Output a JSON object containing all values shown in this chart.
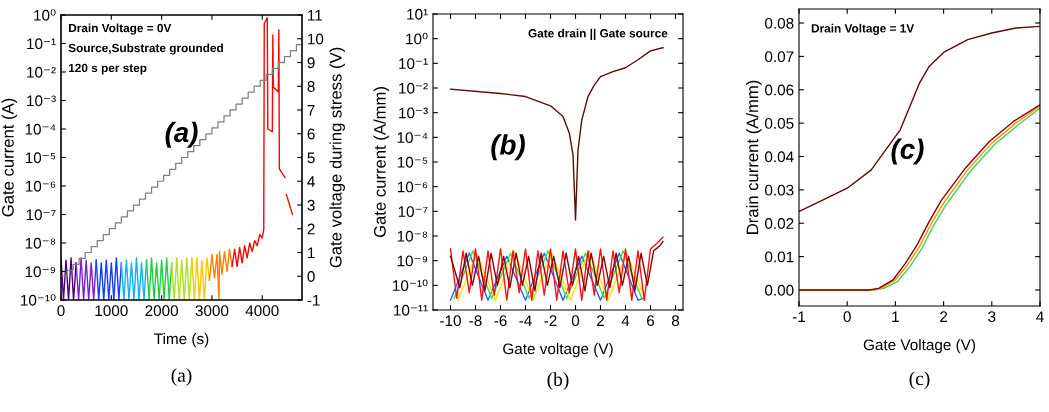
{
  "chart_data": [
    {
      "type": "line",
      "log": true,
      "xlabel": "Time (s)",
      "ylabel": "Gate current (A)",
      "y2label": "Gate voltage during stress (V)",
      "xlim": [
        0,
        4790
      ],
      "xticks": [
        0,
        1000,
        2000,
        3000,
        4000
      ],
      "ylim": [
        1e-10,
        1
      ],
      "yticks": [
        {
          "value": 1e-10,
          "label": "10⁻¹⁰"
        },
        {
          "value": 1e-09,
          "label": "10⁻⁹"
        },
        {
          "value": 1e-08,
          "label": "10⁻⁸"
        },
        {
          "value": 1e-07,
          "label": "10⁻⁷"
        },
        {
          "value": 1e-06,
          "label": "10⁻⁶"
        },
        {
          "value": 1e-05,
          "label": "10⁻⁵"
        },
        {
          "value": 0.0001,
          "label": "10⁻⁴"
        },
        {
          "value": 0.001,
          "label": "10⁻³"
        },
        {
          "value": 0.01,
          "label": "10⁻²"
        },
        {
          "value": 0.1,
          "label": "10⁻¹"
        },
        {
          "value": 1,
          "label": "10⁰"
        }
      ],
      "y2lim": [
        -1,
        11
      ],
      "y2ticks": [
        -1,
        0,
        1,
        2,
        3,
        4,
        5,
        6,
        7,
        8,
        9,
        10,
        11
      ],
      "annotations": [
        "Drain Voltage = 0V",
        "Source,Substrate grounded",
        "120 s per step",
        "(a)",
        "(a)"
      ],
      "series": [
        {
          "color": "#4b0082",
          "x": [
            0,
            50,
            100,
            150,
            200,
            250,
            300
          ],
          "values": [
            3e-09,
            1e-10,
            2.5e-09,
            1e-10,
            3e-09,
            1e-10,
            2e-09
          ]
        },
        {
          "color": "#7b20d0",
          "x": [
            300,
            350,
            400,
            450,
            500,
            550,
            600,
            650,
            700
          ],
          "values": [
            2e-09,
            1e-10,
            3e-09,
            1e-10,
            2.5e-09,
            1e-10,
            2e-09,
            1e-10,
            2.5e-09
          ]
        },
        {
          "color": "#1040ff",
          "x": [
            700,
            750,
            800,
            850,
            900,
            950,
            1000,
            1050,
            1100,
            1150,
            1200
          ],
          "values": [
            2.5e-09,
            1e-10,
            2e-09,
            1e-10,
            2.5e-09,
            1e-10,
            2e-09,
            1e-10,
            3e-09,
            1e-10,
            2e-09
          ]
        },
        {
          "color": "#10b0ff",
          "x": [
            1200,
            1250,
            1300,
            1350,
            1400,
            1450,
            1500,
            1550,
            1600,
            1650,
            1700
          ],
          "values": [
            2e-09,
            1e-10,
            2.5e-09,
            1e-10,
            2e-09,
            1e-10,
            3e-09,
            1e-10,
            2e-09,
            1e-10,
            2.5e-09
          ]
        },
        {
          "color": "#20d040",
          "x": [
            1700,
            1750,
            1800,
            1850,
            1900,
            1950,
            2000,
            2050,
            2100,
            2150,
            2200
          ],
          "values": [
            2.5e-09,
            1e-10,
            3e-09,
            1e-10,
            2e-09,
            1e-10,
            2.5e-09,
            1e-10,
            3e-09,
            1e-10,
            2e-09
          ]
        },
        {
          "color": "#b0e020",
          "x": [
            2200,
            2250,
            2300,
            2350,
            2400,
            2450,
            2500,
            2550,
            2600
          ],
          "values": [
            2e-09,
            1e-10,
            3e-09,
            1e-10,
            2.5e-09,
            1e-10,
            3e-09,
            1e-10,
            3e-09
          ]
        },
        {
          "color": "#ffc800",
          "x": [
            2600,
            2650,
            2700,
            2750,
            2800,
            2850,
            2900,
            2950
          ],
          "values": [
            3e-09,
            1e-10,
            3e-09,
            1e-10,
            2.5e-09,
            1e-10,
            3e-09,
            5e-10
          ]
        },
        {
          "color": "#ff8000",
          "x": [
            2950,
            3000,
            3050,
            3100,
            3140,
            3150,
            3200,
            3250,
            3300,
            3350,
            3400
          ],
          "values": [
            5e-10,
            4e-09,
            6e-10,
            4e-09,
            1e-10,
            5e-09,
            8e-10,
            5e-09,
            1e-09,
            6e-09,
            1.5e-09
          ]
        },
        {
          "color": "#ff0000",
          "x": [
            3400,
            3450,
            3500,
            3550,
            3600,
            3650,
            3700,
            3750,
            3800,
            3850,
            3900,
            3950,
            4000,
            4030,
            4040,
            4100,
            4110,
            4200,
            4210,
            4220,
            4320,
            4330,
            4340,
            4450,
            4460,
            4480,
            4600
          ],
          "values": [
            1.5e-09,
            6e-09,
            1.5e-09,
            7e-09,
            2e-09,
            8e-09,
            3e-09,
            1e-08,
            5e-09,
            1.2e-08,
            8e-09,
            2e-08,
            1.5e-08,
            3e-08,
            0.5,
            0.8,
            0.0001,
            8e-05,
            0.2,
            0.003,
            0.002,
            0.3,
            4e-06,
            2e-06,
            null,
            5e-07,
            1e-07
          ]
        },
        {
          "type": "step",
          "axis": "y2",
          "color": "#808080",
          "x": [
            0,
            120,
            240,
            360,
            480,
            600,
            720,
            840,
            960,
            1080,
            1200,
            1320,
            1440,
            1560,
            1680,
            1800,
            1920,
            2040,
            2160,
            2280,
            2400,
            2520,
            2640,
            2760,
            2880,
            3000,
            3120,
            3240,
            3360,
            3480,
            3600,
            3720,
            3840,
            3960,
            4080,
            4200,
            4320,
            4440,
            4560,
            4680,
            4790
          ],
          "values": [
            0,
            0.25,
            0.5,
            0.75,
            1,
            1.25,
            1.5,
            1.75,
            2,
            2.25,
            2.5,
            2.75,
            3,
            3.25,
            3.5,
            3.75,
            4,
            4.25,
            4.5,
            4.75,
            5,
            5.25,
            5.5,
            5.75,
            6,
            6.25,
            6.5,
            6.75,
            7,
            7.25,
            7.5,
            7.75,
            8,
            8.25,
            8.5,
            8.75,
            9,
            9.25,
            9.5,
            9.75,
            9.75
          ]
        }
      ]
    },
    {
      "type": "line",
      "log": true,
      "xlabel": "Gate voltage (V)",
      "ylabel": "Gate current (A/mm)",
      "xlim": [
        -11.4,
        8.6
      ],
      "xticks": [
        -10,
        -8,
        -6,
        -4,
        -2,
        0,
        2,
        4,
        6,
        8
      ],
      "ylim": [
        1e-11,
        10
      ],
      "yticks": [
        {
          "value": 1e-11,
          "label": "10⁻¹¹"
        },
        {
          "value": 1e-10,
          "label": "10⁻¹⁰"
        },
        {
          "value": 1e-09,
          "label": "10⁻⁹"
        },
        {
          "value": 1e-08,
          "label": "10⁻⁸"
        },
        {
          "value": 1e-07,
          "label": "10⁻⁷"
        },
        {
          "value": 1e-06,
          "label": "10⁻⁶"
        },
        {
          "value": 1e-05,
          "label": "10⁻⁵"
        },
        {
          "value": 0.0001,
          "label": "10⁻⁴"
        },
        {
          "value": 0.001,
          "label": "10⁻³"
        },
        {
          "value": 0.01,
          "label": "10⁻²"
        },
        {
          "value": 0.1,
          "label": "10⁻¹"
        },
        {
          "value": 1,
          "label": "10⁰"
        },
        {
          "value": 10,
          "label": "10¹"
        }
      ],
      "annotations": [
        "Gate drain || Gate source",
        "(b)",
        "(b)"
      ],
      "series": [
        {
          "color": "#2060ff",
          "x": [
            -10,
            -8.5,
            -7,
            -5.5,
            -4,
            -2.5,
            -1,
            0.5,
            2,
            3.5,
            5,
            5.5
          ],
          "values": [
            2.5e-11,
            2e-09,
            2.5e-11,
            1.5e-09,
            2.5e-11,
            2e-09,
            2.5e-11,
            1.5e-09,
            2.5e-11,
            2e-09,
            2.5e-11,
            3e-11
          ]
        },
        {
          "color": "#40e040",
          "x": [
            -9.7,
            -8.2,
            -6.7,
            -5.2,
            -3.7,
            -2.2,
            -0.7,
            0.8,
            2.3,
            3.8,
            5.3
          ],
          "values": [
            3e-11,
            2.5e-09,
            3e-11,
            2e-09,
            3e-11,
            2.5e-09,
            3e-11,
            2e-09,
            3e-11,
            2.5e-09,
            3e-11
          ]
        },
        {
          "color": "#ffe000",
          "x": [
            -9.4,
            -7.9,
            -6.4,
            -4.9,
            -3.4,
            -1.9,
            -0.4,
            1.1,
            2.6,
            4.1,
            5.6
          ],
          "values": [
            2.5e-11,
            2e-09,
            2.5e-11,
            2.5e-09,
            2.5e-11,
            2e-09,
            2.5e-11,
            2.5e-09,
            2.5e-11,
            2e-09,
            2.5e-11
          ]
        },
        {
          "color": "#ff1010",
          "x": [
            -10,
            -9.5,
            -9,
            -8.5,
            -8,
            -7.5,
            -7,
            -6.5,
            -6,
            -5.5,
            -5,
            -4.5,
            -4,
            -3.5,
            -3,
            -2.5,
            -2,
            -1.5,
            -1,
            -0.5,
            0,
            0.5,
            1,
            1.5,
            2,
            2.5,
            3,
            3.5,
            4,
            4.5,
            5,
            5.5,
            6,
            6.5,
            7
          ],
          "values": [
            3e-09,
            3e-11,
            2.5e-09,
            5e-11,
            3e-09,
            2.5e-11,
            2.5e-09,
            4e-11,
            3e-09,
            2.5e-11,
            2.5e-09,
            5e-11,
            3e-09,
            2.5e-11,
            2.5e-09,
            4e-11,
            3e-09,
            2.5e-11,
            2.5e-09,
            5e-11,
            3e-09,
            2.5e-11,
            2.5e-09,
            4e-11,
            3e-09,
            2.5e-11,
            2.5e-09,
            5e-11,
            3e-09,
            2.5e-11,
            2.5e-09,
            2.5e-11,
            3e-09,
            5e-09,
            9e-09
          ]
        },
        {
          "color": "#8b0000",
          "x": [
            -10,
            -9.25,
            -8.75,
            -8.25,
            -7.75,
            -7.25,
            -6.75,
            -6.25,
            -5.75,
            -5.25,
            -4.75,
            -4.25,
            -3.75,
            -3.25,
            -2.75,
            -2.25,
            -1.75,
            -1.25,
            -0.75,
            -0.25,
            0.25,
            0.75,
            1.25,
            1.75,
            2.25,
            2.75,
            3.25,
            3.75,
            4.25,
            4.75,
            5.25,
            5.75,
            6.25,
            6.75,
            7
          ],
          "values": [
            1.5e-09,
            8e-11,
            2e-09,
            1e-10,
            1.5e-09,
            6e-11,
            2e-09,
            1e-10,
            1.5e-09,
            8e-11,
            2e-09,
            1e-10,
            1.5e-09,
            6e-11,
            2e-09,
            1e-10,
            1.5e-09,
            8e-11,
            2e-09,
            1e-10,
            1.5e-09,
            6e-11,
            2e-09,
            1e-10,
            1.5e-09,
            8e-11,
            2e-09,
            1e-10,
            1.5e-09,
            6e-11,
            2e-09,
            1e-10,
            2.5e-09,
            4e-09,
            6e-09
          ]
        },
        {
          "color": "#5c0a0a",
          "x": [
            -10,
            -6,
            -4,
            -2,
            -1,
            -0.5,
            -0.2,
            0,
            0.2,
            0.5,
            1,
            1.5,
            2,
            3,
            4,
            5,
            6,
            7
          ],
          "values": [
            0.009,
            0.006,
            0.0045,
            0.0019,
            0.0007,
            0.00015,
            2e-05,
            4.5e-08,
            3e-05,
            0.0005,
            0.0045,
            0.013,
            0.029,
            0.046,
            0.066,
            0.14,
            0.32,
            0.43
          ]
        }
      ]
    },
    {
      "type": "line",
      "xlabel": "Gate Voltage (V)",
      "ylabel": "Drain current (A/mm)",
      "xlim": [
        -1,
        4
      ],
      "xticks": [
        -1,
        0,
        1,
        2,
        3,
        4
      ],
      "ylim": [
        -0.0048,
        0.0842
      ],
      "yticks": [
        {
          "value": 0,
          "label": "0.00"
        },
        {
          "value": 0.01,
          "label": "0.01"
        },
        {
          "value": 0.02,
          "label": "0.02"
        },
        {
          "value": 0.03,
          "label": "0.03"
        },
        {
          "value": 0.04,
          "label": "0.04"
        },
        {
          "value": 0.05,
          "label": "0.05"
        },
        {
          "value": 0.06,
          "label": "0.06"
        },
        {
          "value": 0.07,
          "label": "0.07"
        },
        {
          "value": 0.08,
          "label": "0.08"
        }
      ],
      "annotations": [
        "Drain Voltage = 1V",
        "(c)",
        "(c)"
      ],
      "series": [
        {
          "color": "#40d060",
          "x": [
            -1,
            0.55,
            0.75,
            1.05,
            1.3,
            1.55,
            1.8,
            2.05,
            2.55,
            3.05,
            3.55,
            4
          ],
          "values": [
            0,
            0,
            0.0004,
            0.0026,
            0.007,
            0.0125,
            0.0195,
            0.0255,
            0.0355,
            0.0435,
            0.0495,
            0.0545
          ]
        },
        {
          "color": "#ff9000",
          "x": [
            -1,
            0.5,
            0.7,
            1.0,
            1.25,
            1.5,
            1.75,
            2,
            2.5,
            3,
            3.5,
            4
          ],
          "values": [
            0,
            0,
            0.0005,
            0.003,
            0.0075,
            0.013,
            0.02,
            0.026,
            0.036,
            0.044,
            0.05,
            0.0552
          ]
        },
        {
          "color": "#8b0000",
          "x": [
            -1,
            0.45,
            0.65,
            0.95,
            1.2,
            1.45,
            1.7,
            1.95,
            2.45,
            2.95,
            3.45,
            4
          ],
          "values": [
            0,
            0,
            0.0005,
            0.003,
            0.0078,
            0.0135,
            0.0205,
            0.0268,
            0.0365,
            0.0445,
            0.0505,
            0.0555
          ]
        },
        {
          "color": "#5c0a0a",
          "x": [
            -1,
            -0.5,
            0,
            0.5,
            0.75,
            0.9,
            1.1,
            1.3,
            1.5,
            1.7,
            2,
            2.5,
            3,
            3.5,
            4
          ],
          "values": [
            0.0235,
            0.027,
            0.0305,
            0.036,
            0.041,
            0.044,
            0.048,
            0.055,
            0.062,
            0.067,
            0.0712,
            0.075,
            0.077,
            0.0785,
            0.079
          ]
        }
      ]
    }
  ]
}
